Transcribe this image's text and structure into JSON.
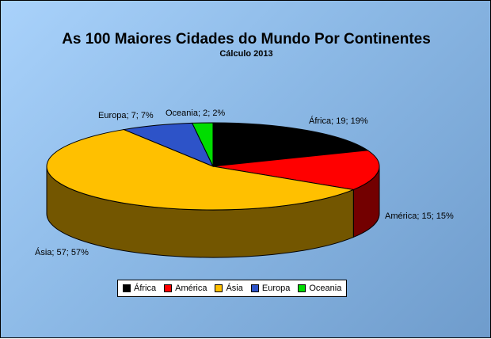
{
  "chart_data": {
    "type": "pie",
    "title": "As 100 Maiores Cidades do Mundo Por Continentes",
    "subtitle": "Cálculo 2013",
    "categories": [
      "África",
      "América",
      "Ásia",
      "Europa",
      "Oceania"
    ],
    "values": [
      19,
      15,
      57,
      7,
      2
    ],
    "percents": [
      19,
      15,
      57,
      7,
      2
    ],
    "colors": [
      "#000000",
      "#ff0000",
      "#ffc000",
      "#2d53c8",
      "#00dd00"
    ],
    "data_labels": [
      "África; 19; 19%",
      "América; 15; 15%",
      "Ásia; 57; 57%",
      "Europa; 7; 7%",
      "Oceania; 2; 2%"
    ],
    "legend_position": "bottom",
    "style": "3d"
  }
}
